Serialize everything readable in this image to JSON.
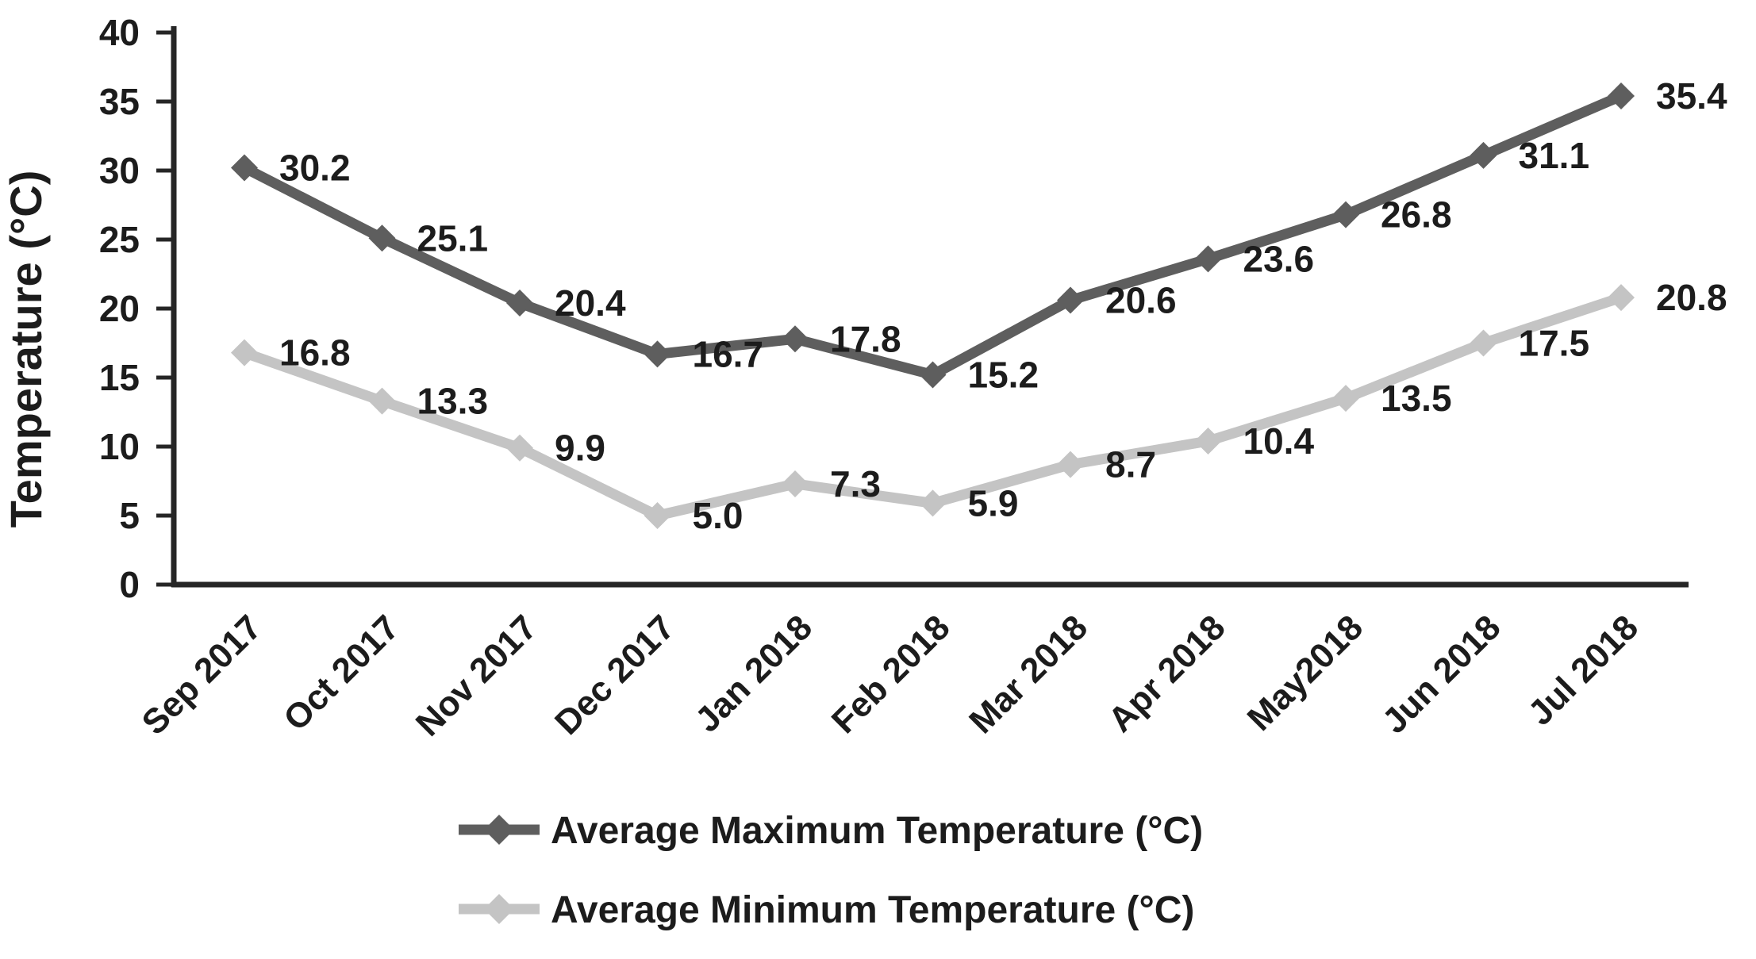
{
  "chart_data": {
    "type": "line",
    "title": "",
    "xlabel": "",
    "ylabel": "Temperature (°C)",
    "ylim": [
      0,
      40
    ],
    "yticks": [
      0,
      5,
      10,
      15,
      20,
      25,
      30,
      35,
      40
    ],
    "grid": false,
    "legend_position": "bottom",
    "categories": [
      "Sep 2017",
      "Oct 2017",
      "Nov 2017",
      "Dec 2017",
      "Jan 2018",
      "Feb 2018",
      "Mar 2018",
      "Apr 2018",
      "May2018",
      "Jun 2018",
      "Jul 2018"
    ],
    "series": [
      {
        "name": "Average Maximum Temperature (°C)",
        "color": "#5e5e5e",
        "values": [
          30.2,
          25.1,
          20.4,
          16.7,
          17.8,
          15.2,
          20.6,
          23.6,
          26.8,
          31.1,
          35.4
        ]
      },
      {
        "name": "Average Minimum Temperature (°C)",
        "color": "#c4c4c4",
        "values": [
          16.8,
          13.3,
          9.9,
          5.0,
          7.3,
          5.9,
          8.7,
          10.4,
          13.5,
          17.5,
          20.8
        ]
      }
    ],
    "axis_color": "#262626",
    "text_color": "#1c1c1c",
    "background": "#ffffff"
  }
}
